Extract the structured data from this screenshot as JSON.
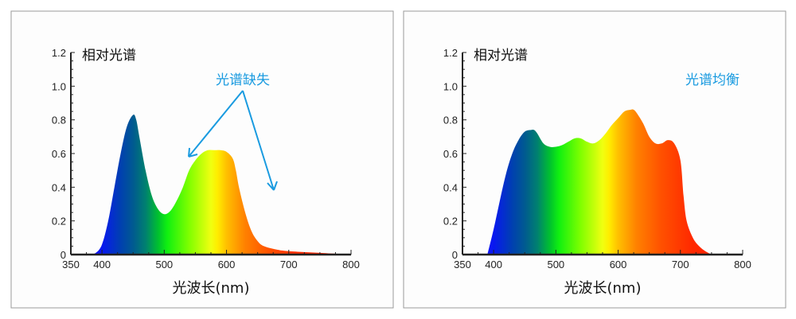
{
  "chart_data": [
    {
      "type": "area",
      "ylabel": "相对光谱",
      "xlabel": "光波长(nm)",
      "annotation": "光谱缺失",
      "annotation_color": "#1a9be0",
      "xlim": [
        350,
        800
      ],
      "ylim": [
        0,
        1.2
      ],
      "x_ticks": [
        "350",
        "400",
        "500",
        "600",
        "700",
        "800"
      ],
      "y_ticks": [
        "0",
        "0.2",
        "0.4",
        "0.6",
        "0.8",
        "1.0",
        "1.2"
      ],
      "grid": false,
      "fill": "visible-spectrum gradient",
      "x": [
        380,
        390,
        400,
        410,
        420,
        430,
        440,
        450,
        455,
        460,
        470,
        480,
        490,
        500,
        510,
        520,
        530,
        540,
        550,
        560,
        570,
        580,
        590,
        600,
        610,
        615,
        620,
        630,
        640,
        650,
        660,
        680,
        700,
        750,
        800
      ],
      "y": [
        0,
        0.01,
        0.06,
        0.2,
        0.4,
        0.6,
        0.76,
        0.83,
        0.8,
        0.7,
        0.5,
        0.35,
        0.27,
        0.24,
        0.26,
        0.32,
        0.4,
        0.5,
        0.56,
        0.6,
        0.62,
        0.62,
        0.62,
        0.61,
        0.57,
        0.5,
        0.4,
        0.25,
        0.14,
        0.08,
        0.05,
        0.03,
        0.02,
        0.01,
        0
      ]
    },
    {
      "type": "area",
      "ylabel": "相对光谱",
      "xlabel": "光波长(nm)",
      "annotation": "光谱均衡",
      "annotation_color": "#1a9be0",
      "xlim": [
        350,
        800
      ],
      "ylim": [
        0,
        1.2
      ],
      "x_ticks": [
        "350",
        "400",
        "500",
        "600",
        "700",
        "800"
      ],
      "y_ticks": [
        "0",
        "0.2",
        "0.4",
        "0.6",
        "0.8",
        "1.0",
        "1.2"
      ],
      "grid": false,
      "fill": "visible-spectrum gradient",
      "x": [
        390,
        400,
        410,
        420,
        430,
        440,
        450,
        460,
        465,
        470,
        480,
        490,
        500,
        510,
        520,
        530,
        540,
        550,
        560,
        570,
        580,
        590,
        600,
        610,
        620,
        625,
        630,
        640,
        650,
        660,
        670,
        680,
        690,
        700,
        705,
        710,
        720,
        730,
        740,
        750
      ],
      "y": [
        0,
        0.15,
        0.32,
        0.48,
        0.6,
        0.68,
        0.73,
        0.74,
        0.74,
        0.72,
        0.66,
        0.64,
        0.64,
        0.65,
        0.67,
        0.69,
        0.69,
        0.67,
        0.66,
        0.68,
        0.72,
        0.77,
        0.81,
        0.85,
        0.86,
        0.86,
        0.84,
        0.78,
        0.7,
        0.66,
        0.66,
        0.68,
        0.66,
        0.56,
        0.35,
        0.2,
        0.1,
        0.05,
        0.02,
        0
      ]
    }
  ]
}
